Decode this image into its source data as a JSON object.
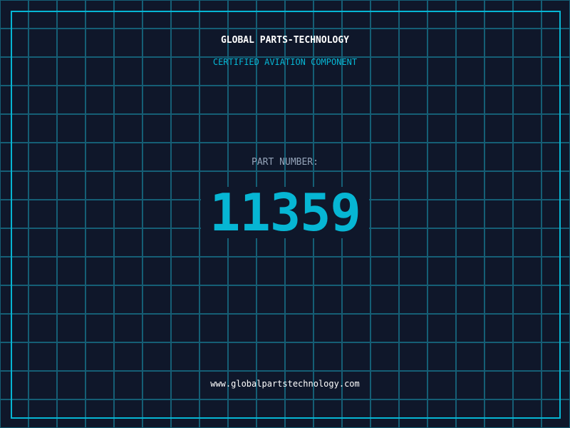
{
  "header": {
    "brand": "GLOBAL PARTS-TECHNOLOGY",
    "subtitle": "CERTIFIED AVIATION COMPONENT"
  },
  "part": {
    "label": "PART NUMBER:",
    "number": "11359"
  },
  "footer": {
    "url": "www.globalpartstechnology.com"
  },
  "colors": {
    "background": "#0f172a",
    "accent": "#06b6d4",
    "grid": "#155e75",
    "label": "#94a3b8"
  }
}
